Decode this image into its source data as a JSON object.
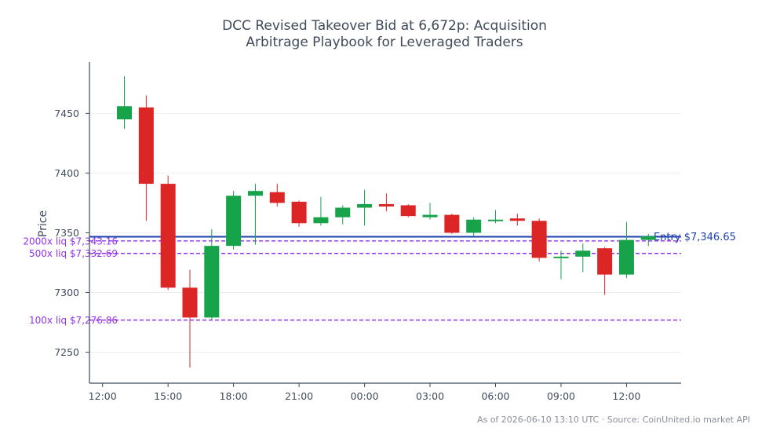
{
  "chart_data": {
    "type": "candlestick",
    "title_lines": [
      "DCC Revised Takeover Bid at 6,672p: Acquisition",
      "Arbitrage Playbook for Leveraged Traders"
    ],
    "ylabel": "Price",
    "xlabel": "",
    "ylim": [
      7224,
      7493
    ],
    "y_ticks": [
      7250,
      7300,
      7350,
      7400,
      7450
    ],
    "x_ticks": [
      "12:00",
      "15:00",
      "18:00",
      "21:00",
      "00:00",
      "03:00",
      "06:00",
      "09:00",
      "12:00"
    ],
    "x_tick_hours": [
      0,
      3,
      6,
      9,
      12,
      15,
      18,
      21,
      24
    ],
    "x_range_hours": [
      -0.6,
      26.5
    ],
    "grid": true,
    "candles": [
      {
        "h": 1,
        "o": 7445,
        "hi": 7481,
        "lo": 7437,
        "c": 7456
      },
      {
        "h": 2,
        "o": 7455,
        "hi": 7465,
        "lo": 7360,
        "c": 7391
      },
      {
        "h": 3,
        "o": 7391,
        "hi": 7398,
        "lo": 7302,
        "c": 7304
      },
      {
        "h": 4,
        "o": 7304,
        "hi": 7319,
        "lo": 7237,
        "c": 7279
      },
      {
        "h": 5,
        "o": 7279,
        "hi": 7353,
        "lo": 7277,
        "c": 7339
      },
      {
        "h": 6,
        "o": 7339,
        "hi": 7385,
        "lo": 7336,
        "c": 7381
      },
      {
        "h": 7,
        "o": 7381,
        "hi": 7391,
        "lo": 7340,
        "c": 7385
      },
      {
        "h": 8,
        "o": 7384,
        "hi": 7391,
        "lo": 7372,
        "c": 7375
      },
      {
        "h": 9,
        "o": 7376,
        "hi": 7377,
        "lo": 7355,
        "c": 7358
      },
      {
        "h": 10,
        "o": 7358,
        "hi": 7380,
        "lo": 7356,
        "c": 7363
      },
      {
        "h": 11,
        "o": 7363,
        "hi": 7373,
        "lo": 7357,
        "c": 7371
      },
      {
        "h": 12,
        "o": 7371,
        "hi": 7386,
        "lo": 7356,
        "c": 7374
      },
      {
        "h": 13,
        "o": 7374,
        "hi": 7383,
        "lo": 7368,
        "c": 7372
      },
      {
        "h": 14,
        "o": 7373,
        "hi": 7374,
        "lo": 7363,
        "c": 7364
      },
      {
        "h": 15,
        "o": 7363,
        "hi": 7375,
        "lo": 7361,
        "c": 7365
      },
      {
        "h": 16,
        "o": 7365,
        "hi": 7366,
        "lo": 7349,
        "c": 7350
      },
      {
        "h": 17,
        "o": 7350,
        "hi": 7363,
        "lo": 7347,
        "c": 7361
      },
      {
        "h": 18,
        "o": 7361,
        "hi": 7369,
        "lo": 7358,
        "c": 7361
      },
      {
        "h": 19,
        "o": 7362,
        "hi": 7366,
        "lo": 7356,
        "c": 7360
      },
      {
        "h": 20,
        "o": 7360,
        "hi": 7362,
        "lo": 7326,
        "c": 7329
      },
      {
        "h": 21,
        "o": 7329,
        "hi": 7335,
        "lo": 7311,
        "c": 7330
      },
      {
        "h": 22,
        "o": 7330,
        "hi": 7341,
        "lo": 7317,
        "c": 7335
      },
      {
        "h": 23,
        "o": 7337,
        "hi": 7338,
        "lo": 7298,
        "c": 7315
      },
      {
        "h": 24,
        "o": 7315,
        "hi": 7359,
        "lo": 7312,
        "c": 7344
      },
      {
        "h": 25,
        "o": 7344,
        "hi": 7349,
        "lo": 7339,
        "c": 7347
      }
    ],
    "entry_line": {
      "value": 7346.65,
      "label": "Entry $7,346.65"
    },
    "liq_lines": [
      {
        "value": 7343.16,
        "label": "2000x liq $7,343.16"
      },
      {
        "value": 7332.69,
        "label": "500x liq $7,332.69"
      },
      {
        "value": 7276.86,
        "label": "100x liq $7,276.86"
      }
    ],
    "footer": "As of 2026-06-10 13:10 UTC · Source: CoinUnited.io market API",
    "colors": {
      "up": "#16a34a",
      "down": "#dc2626",
      "entry": "#1e40af",
      "liq": "#9333ea",
      "title": "#3f4a5a",
      "axis": "#3f4a5a",
      "tick_text": "#3f4a5a",
      "grid": "#eeeeee",
      "footer": "#8a8f99"
    }
  }
}
